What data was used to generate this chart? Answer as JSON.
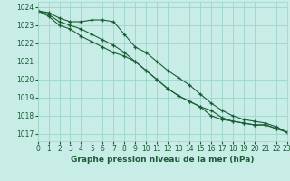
{
  "title": "Graphe pression niveau de la mer (hPa)",
  "background_color": "#c8ece6",
  "grid_color": "#9ed4ca",
  "line_color": "#1a5c35",
  "text_color": "#1a5c35",
  "x_values": [
    0,
    1,
    2,
    3,
    4,
    5,
    6,
    7,
    8,
    9,
    10,
    11,
    12,
    13,
    14,
    15,
    16,
    17,
    18,
    19,
    20,
    21,
    22,
    23
  ],
  "series": [
    [
      1023.8,
      1023.7,
      1023.4,
      1023.2,
      1023.2,
      1023.3,
      1023.3,
      1023.2,
      1022.5,
      1021.8,
      1021.5,
      1021.0,
      1020.5,
      1020.1,
      1019.7,
      1019.2,
      1018.7,
      1018.3,
      1018.0,
      1017.8,
      1017.7,
      1017.6,
      1017.4,
      1017.1
    ],
    [
      1023.8,
      1023.6,
      1023.2,
      1023.0,
      1022.8,
      1022.5,
      1022.2,
      1021.9,
      1021.5,
      1021.0,
      1020.5,
      1020.0,
      1019.5,
      1019.1,
      1018.8,
      1018.5,
      1018.0,
      1017.8,
      1017.7,
      1017.6,
      1017.5,
      1017.5,
      1017.3,
      1017.1
    ],
    [
      1023.8,
      1023.5,
      1023.0,
      1022.8,
      1022.4,
      1022.1,
      1021.8,
      1021.5,
      1021.3,
      1021.0,
      1020.5,
      1020.0,
      1019.5,
      1019.1,
      1018.8,
      1018.5,
      1018.3,
      1017.9,
      1017.7,
      1017.6,
      1017.5,
      1017.5,
      1017.3,
      1017.1
    ]
  ],
  "ylim": [
    1016.6,
    1024.3
  ],
  "yticks": [
    1017,
    1018,
    1019,
    1020,
    1021,
    1022,
    1023,
    1024
  ],
  "xlim": [
    0,
    23
  ],
  "xticks": [
    0,
    1,
    2,
    3,
    4,
    5,
    6,
    7,
    8,
    9,
    10,
    11,
    12,
    13,
    14,
    15,
    16,
    17,
    18,
    19,
    20,
    21,
    22,
    23
  ],
  "xlabel_fontsize": 6.5,
  "tick_fontsize": 5.5,
  "figsize": [
    3.2,
    2.0
  ],
  "dpi": 100
}
